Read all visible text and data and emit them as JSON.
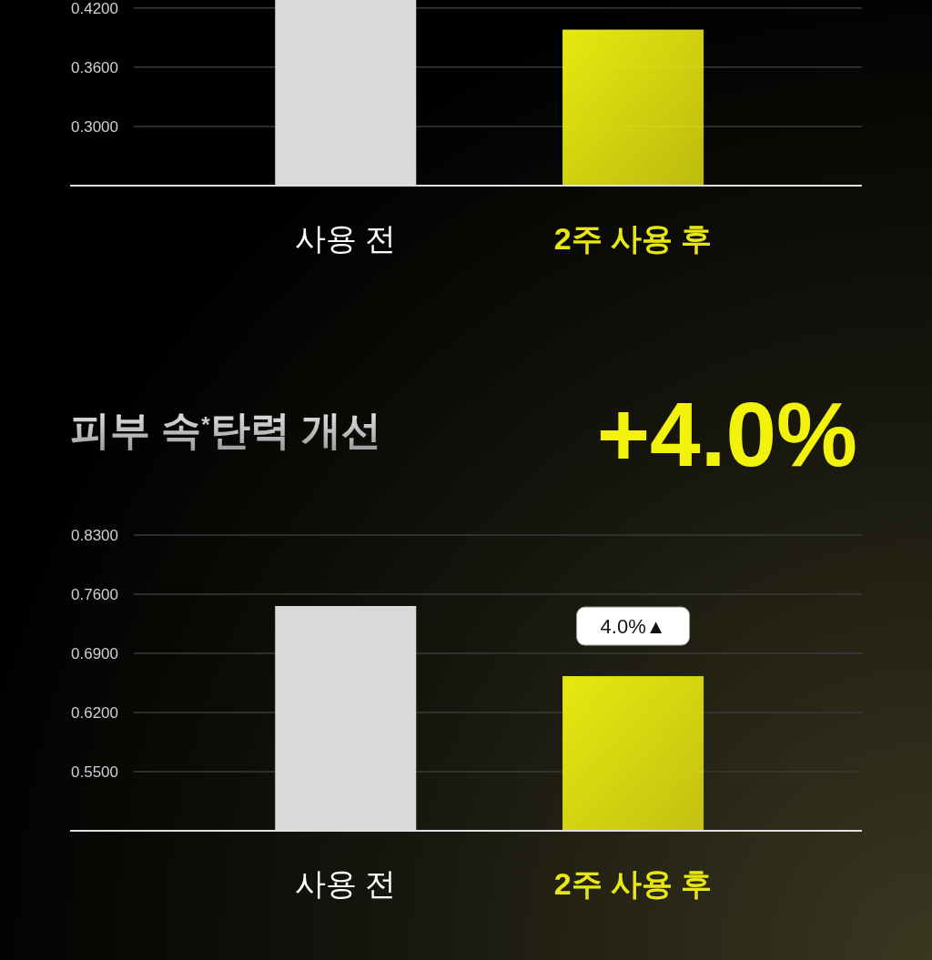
{
  "chart_data": [
    {
      "type": "bar",
      "categories": [
        "사용 전",
        "2주 사용 후"
      ],
      "values": [
        0.428,
        0.398
      ],
      "colors": [
        "#d9d9d9",
        "#e8e810"
      ],
      "ylim": [
        0.24,
        0.428
      ],
      "yticks": [
        {
          "value": 0.42,
          "label": "0.4200"
        },
        {
          "value": 0.36,
          "label": "0.3600"
        },
        {
          "value": 0.3,
          "label": "0.3000"
        }
      ],
      "grid": "y"
    },
    {
      "type": "bar",
      "title": "피부 속$^{*}$탄력 개선",
      "subtitle": "+4.0%",
      "categories": [
        "사용 전",
        "2주 사용 후"
      ],
      "values": [
        0.746,
        0.663
      ],
      "colors": [
        "#d9d9d9",
        "#e8e810"
      ],
      "ylim": [
        0.48,
        0.83
      ],
      "yticks": [
        {
          "value": 0.83,
          "label": "0.8300"
        },
        {
          "value": 0.76,
          "label": "0.7600"
        },
        {
          "value": 0.69,
          "label": "0.6900"
        },
        {
          "value": 0.62,
          "label": "0.6200"
        },
        {
          "value": 0.55,
          "label": "0.5500"
        }
      ],
      "grid": "y",
      "annotations": [
        "4.0%▲"
      ]
    }
  ]
}
